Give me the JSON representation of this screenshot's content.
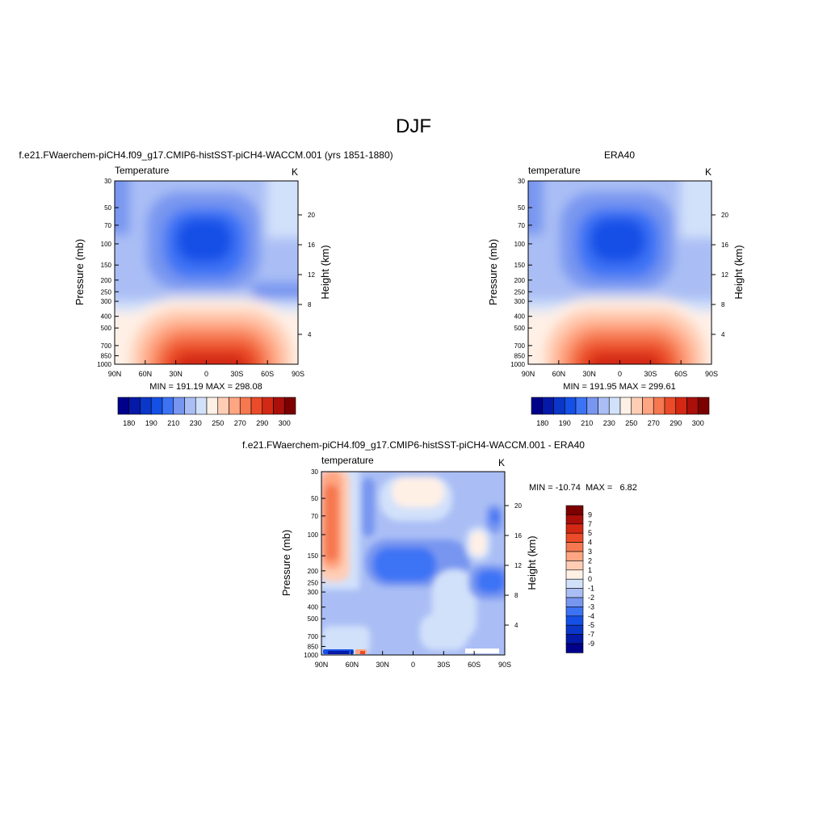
{
  "figure": {
    "title": "DJF"
  },
  "panels": [
    {
      "id": "model",
      "header": "f.e21.FWaerchem-piCH4.f09_g17.CMIP6-histSST-piCH4-WACCM.001 (yrs 1851-1880)",
      "left_label": "Temperature",
      "units": "K",
      "ylabel": "Pressure (mb)",
      "y2label": "Height (km)",
      "stats": "MIN = 191.19  MAX = 298.08"
    },
    {
      "id": "obs",
      "header": "ERA40",
      "left_label": "temperature",
      "units": "K",
      "ylabel": "Pressure (mb)",
      "y2label": "Height (km)",
      "stats": "MIN = 191.95  MAX = 299.61"
    },
    {
      "id": "diff",
      "header": "f.e21.FWaerchem-piCH4.f09_g17.CMIP6-histSST-piCH4-WACCM.001 - ERA40",
      "left_label": "temperature",
      "units": "K",
      "ylabel": "Pressure (mb)",
      "y2label": "Height (km)",
      "stats": "MIN = -10.74  MAX =   6.82"
    }
  ],
  "axes": {
    "x_ticks": [
      "90N",
      "60N",
      "30N",
      "0",
      "30S",
      "60S",
      "90S"
    ],
    "pressure_ticks": [
      "30",
      "50",
      "70",
      "100",
      "150",
      "200",
      "250",
      "300",
      "400",
      "500",
      "700",
      "850",
      "1000"
    ],
    "pressure_values": [
      30,
      50,
      70,
      100,
      150,
      200,
      250,
      300,
      400,
      500,
      700,
      850,
      1000
    ],
    "height_ticks": [
      "4",
      "8",
      "12",
      "16",
      "20"
    ],
    "height_values": [
      4,
      8,
      12,
      16,
      20
    ]
  },
  "colorbars": {
    "absolute": {
      "orientation": "horizontal",
      "colors": [
        "#00008b",
        "#0519a8",
        "#0a37c8",
        "#1450e6",
        "#3c73f5",
        "#7896f0",
        "#aabef5",
        "#d2e1fa",
        "#fff0e6",
        "#ffcdb4",
        "#ffa582",
        "#f57850",
        "#eb4b28",
        "#d22814",
        "#aa0f0a",
        "#7d0000"
      ],
      "labels": [
        "180",
        "190",
        "210",
        "230",
        "250",
        "270",
        "290",
        "300"
      ]
    },
    "difference": {
      "orientation": "vertical",
      "colors": [
        "#00008b",
        "#0519a8",
        "#0a37c8",
        "#1450e6",
        "#3c73f5",
        "#7896f0",
        "#aabef5",
        "#d2e1fa",
        "#fff0e6",
        "#ffcdb4",
        "#ffa582",
        "#f57850",
        "#eb4b28",
        "#d22814",
        "#aa0f0a",
        "#7d0000"
      ],
      "labels": [
        "9",
        "7",
        "5",
        "4",
        "3",
        "2",
        "1",
        "0",
        "-1",
        "-2",
        "-3",
        "-4",
        "-5",
        "-7",
        "-9"
      ]
    }
  },
  "chart_data": [
    {
      "type": "heatmap",
      "title": "f.e21.FWaerchem-piCH4.f09_g17.CMIP6-histSST-piCH4-WACCM.001 (yrs 1851-1880)",
      "variable": "Temperature",
      "units": "K",
      "xlabel": "",
      "ylabel": "Pressure (mb)",
      "y2label": "Height (km)",
      "x_categories": [
        "90N",
        "60N",
        "30N",
        "0",
        "30S",
        "60S",
        "90S"
      ],
      "ylim": [
        1000,
        30
      ],
      "min": 191.19,
      "max": 298.08,
      "contour_levels": [
        180,
        185,
        190,
        200,
        210,
        220,
        230,
        240,
        250,
        260,
        270,
        280,
        290,
        295,
        300
      ]
    },
    {
      "type": "heatmap",
      "title": "ERA40",
      "variable": "temperature",
      "units": "K",
      "xlabel": "",
      "ylabel": "Pressure (mb)",
      "y2label": "Height (km)",
      "x_categories": [
        "90N",
        "60N",
        "30N",
        "0",
        "30S",
        "60S",
        "90S"
      ],
      "ylim": [
        1000,
        30
      ],
      "min": 191.95,
      "max": 299.61,
      "contour_levels": [
        180,
        185,
        190,
        200,
        210,
        220,
        230,
        240,
        250,
        260,
        270,
        280,
        290,
        295,
        300
      ]
    },
    {
      "type": "heatmap",
      "title": "f.e21.FWaerchem-piCH4.f09_g17.CMIP6-histSST-piCH4-WACCM.001 - ERA40",
      "variable": "temperature",
      "units": "K",
      "xlabel": "",
      "ylabel": "Pressure (mb)",
      "y2label": "Height (km)",
      "x_categories": [
        "90N",
        "60N",
        "30N",
        "0",
        "30S",
        "60S",
        "90S"
      ],
      "ylim": [
        1000,
        30
      ],
      "min": -10.74,
      "max": 6.82,
      "contour_levels": [
        -9,
        -7,
        -5,
        -4,
        -3,
        -2,
        -1,
        0,
        1,
        2,
        3,
        4,
        5,
        7,
        9
      ]
    }
  ]
}
